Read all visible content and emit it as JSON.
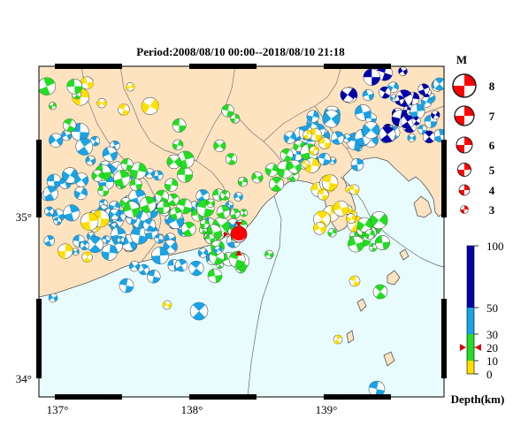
{
  "title": "Period:2008/08/10 00:00--2018/08/10 21:18",
  "lon_ticks": [
    "137°",
    "138°",
    "139°"
  ],
  "lat_ticks": [
    "35°",
    "34°"
  ],
  "legend": {
    "magnitude_label": "M",
    "magnitudes": [
      "8",
      "7",
      "6",
      "5",
      "4",
      "3"
    ],
    "depth_label": "Depth(km)",
    "depth_ticks": [
      "100",
      "50",
      "30",
      "20",
      "10",
      "0"
    ]
  },
  "colors": {
    "land": "#fde3c0",
    "sea": "#e8fcfd",
    "mechanism_main": "#ff0000",
    "depth_0_10": "#ffdf00",
    "depth_10_30": "#22dd22",
    "depth_30_50": "#1aa3e6",
    "depth_50_100": "#0000aa",
    "event_marker": "#dd0000"
  },
  "map_data": {
    "projection": "lon-lat",
    "lon_range": [
      136.88,
      139.95
    ],
    "lat_range": [
      33.9,
      35.93
    ],
    "event": {
      "lon": 138.35,
      "lat": 34.82,
      "depth_km": 20
    },
    "mechanism_groups": {
      "shallow_yellow": 30,
      "mid_green": 70,
      "deep_blue": 130,
      "very_deep_navy": 20
    }
  }
}
